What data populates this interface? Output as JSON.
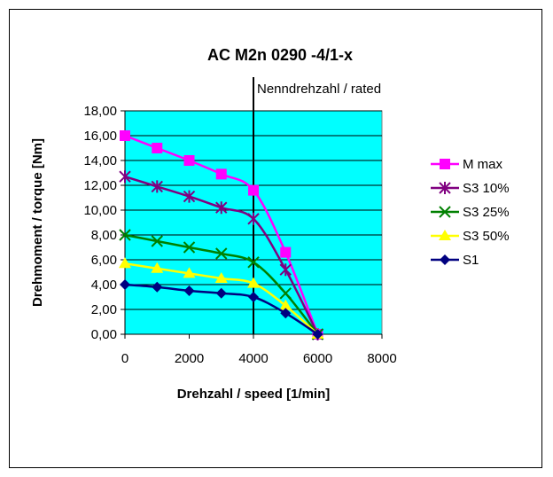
{
  "chart_data": {
    "type": "line",
    "title": "AC M2n 0290 -4/1-x",
    "xlabel": "Drehzahl / speed [1/min]",
    "ylabel": "Drehmoment / torque [Nm]",
    "xlim": [
      0,
      8000
    ],
    "ylim": [
      0,
      18
    ],
    "x_ticks": [
      "0",
      "2000",
      "4000",
      "6000",
      "8000"
    ],
    "y_ticks": [
      "0,00",
      "2,00",
      "4,00",
      "6,00",
      "8,00",
      "10,00",
      "12,00",
      "14,00",
      "16,00",
      "18,00"
    ],
    "grid": true,
    "plot_background": "#00ffff",
    "legend_position": "right",
    "annotation": {
      "text": "Nenndrehzahl / rated",
      "x": 4000
    },
    "x": [
      0,
      1000,
      2000,
      3000,
      4000,
      5000,
      6000
    ],
    "series": [
      {
        "name": "M max",
        "color": "#ff00ff",
        "marker": "square",
        "values": [
          16.0,
          15.0,
          14.0,
          12.9,
          11.6,
          6.6,
          0
        ]
      },
      {
        "name": "S3 10%",
        "color": "#800080",
        "marker": "asterisk",
        "values": [
          12.7,
          11.9,
          11.1,
          10.2,
          9.3,
          5.2,
          0
        ]
      },
      {
        "name": "S3 25%",
        "color": "#008000",
        "marker": "x",
        "values": [
          8.0,
          7.5,
          7.0,
          6.5,
          5.8,
          3.3,
          0
        ]
      },
      {
        "name": "S3 50%",
        "color": "#ffff00",
        "marker": "triangle",
        "values": [
          5.7,
          5.3,
          4.9,
          4.5,
          4.1,
          2.3,
          0
        ]
      },
      {
        "name": "S1",
        "color": "#000080",
        "marker": "diamond",
        "values": [
          4.0,
          3.8,
          3.5,
          3.3,
          3.0,
          1.7,
          0
        ]
      }
    ]
  }
}
